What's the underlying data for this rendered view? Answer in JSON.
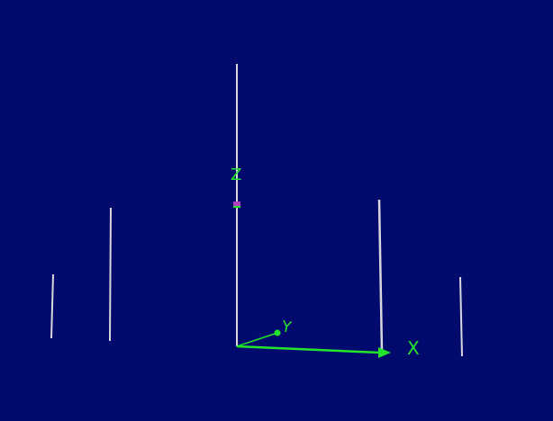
{
  "viewport": {
    "background_color": "#020a6e",
    "rod_color": "#d8d8dc",
    "axis_color": "#22e52a",
    "origin_marker_color": "#b040c0"
  },
  "axes": {
    "x_label": "X",
    "y_label": "Y",
    "z_label": "Z"
  },
  "objects": {
    "rods": [
      {
        "name": "rod-1"
      },
      {
        "name": "rod-2"
      },
      {
        "name": "rod-3"
      },
      {
        "name": "rod-4"
      },
      {
        "name": "rod-5"
      }
    ]
  }
}
